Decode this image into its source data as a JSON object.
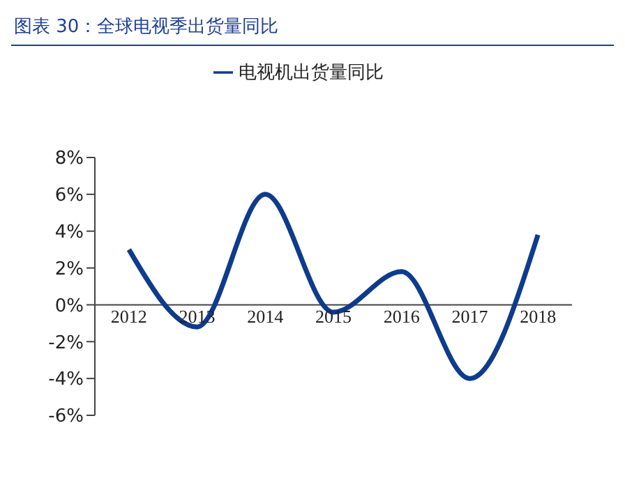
{
  "chart_data": {
    "type": "line",
    "title": "图表 30：全球电视季出货量同比",
    "categories": [
      "2012",
      "2013",
      "2014",
      "2015",
      "2016",
      "2017",
      "2018"
    ],
    "series": [
      {
        "name": "电视机出货量同比",
        "color": "#0e3b8c",
        "values": [
          3.0,
          -1.2,
          6.0,
          -0.4,
          1.8,
          -4.0,
          3.8
        ]
      }
    ],
    "ylim": [
      -6,
      8
    ],
    "yticks": [
      {
        "value": -6,
        "label": "-6%"
      },
      {
        "value": -4,
        "label": "-4%"
      },
      {
        "value": -2,
        "label": "-2%"
      },
      {
        "value": 0,
        "label": "0%"
      },
      {
        "value": 2,
        "label": "2%"
      },
      {
        "value": 4,
        "label": "4%"
      },
      {
        "value": 6,
        "label": "6%"
      },
      {
        "value": 8,
        "label": "8%"
      }
    ],
    "grid": false,
    "legend": "top",
    "marker": "none",
    "line_style": "solid"
  }
}
